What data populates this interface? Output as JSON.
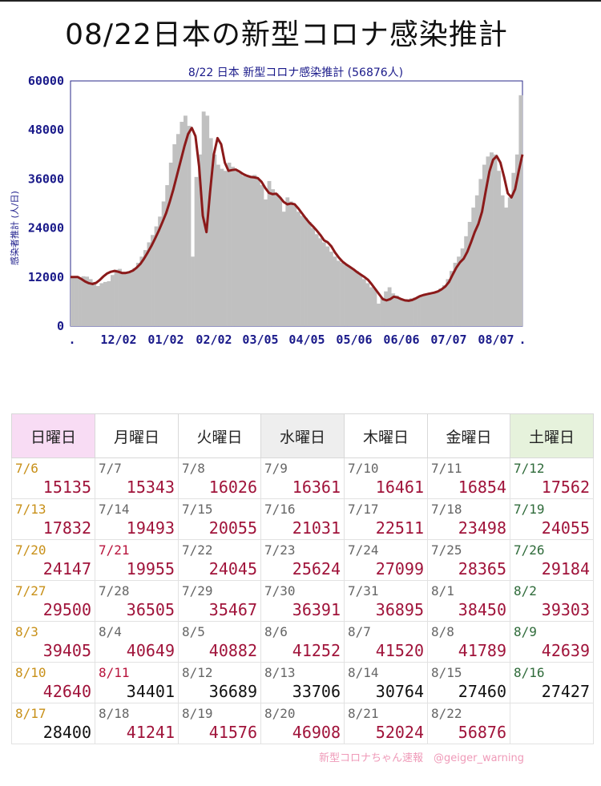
{
  "page_title": "08/22日本の新型コロナ感染推計",
  "chart_data": {
    "type": "bar",
    "title": "8/22 日本 新型コロナ感染推計 (56876人)",
    "ylabel": "感染者推計 (人/日)",
    "xlabel": "",
    "ylim": [
      0,
      60000
    ],
    "yticks": [
      "0",
      "12000",
      "24000",
      "36000",
      "48000",
      "60000"
    ],
    "xticks": [
      ".",
      "12/02",
      "01/02",
      "02/02",
      "03/05",
      "04/05",
      "05/06",
      "06/06",
      "07/07",
      "08/07",
      "."
    ],
    "bar_color": "#c0c0c0",
    "line_color": "#8b1a1a",
    "series": [
      {
        "kind": "daily_bars",
        "values": [
          12000,
          12300,
          11800,
          12200,
          12100,
          11500,
          10800,
          9800,
          10500,
          10800,
          11000,
          12500,
          13800,
          14000,
          13300,
          13000,
          13400,
          14200,
          15500,
          17000,
          18600,
          20500,
          22300,
          24400,
          26800,
          30500,
          34500,
          40000,
          44500,
          47000,
          50000,
          51500,
          49000,
          17000,
          36500,
          42000,
          52500,
          51500,
          46000,
          42000,
          39500,
          38500,
          38000,
          40000,
          39000,
          38000,
          37500,
          36800,
          36500,
          36800,
          37000,
          36000,
          34500,
          31000,
          35500,
          33500,
          32500,
          31500,
          28000,
          31500,
          30500,
          29500,
          28000,
          27000,
          26500,
          25500,
          24000,
          22500,
          21500,
          20500,
          19500,
          18200,
          17000,
          16000,
          15500,
          15000,
          14500,
          14000,
          13500,
          12500,
          11500,
          10500,
          9500,
          9000,
          5500,
          7000,
          8500,
          9500,
          8000,
          7500,
          6800,
          6500,
          6600,
          6800,
          7000,
          7300,
          7600,
          7800,
          8200,
          8300,
          8500,
          9200,
          10000,
          11500,
          13500,
          15500,
          17000,
          19000,
          22000,
          25500,
          29000,
          32000,
          36000,
          39500,
          41500,
          42500,
          42000,
          38000,
          32000,
          29000,
          31500,
          37500,
          42000,
          56500
        ]
      },
      {
        "kind": "smoothed_line",
        "values": [
          12000,
          12000,
          12000,
          11500,
          10900,
          10500,
          10300,
          10600,
          11300,
          12200,
          12900,
          13300,
          13500,
          13300,
          13000,
          13000,
          13200,
          13600,
          14300,
          15200,
          16500,
          18000,
          19600,
          21400,
          23300,
          25400,
          27600,
          30400,
          33500,
          37000,
          40500,
          44000,
          47000,
          48500,
          46500,
          39000,
          27000,
          23000,
          33000,
          42000,
          46000,
          44500,
          40000,
          38000,
          38200,
          38300,
          37800,
          37200,
          36800,
          36500,
          36400,
          36200,
          35300,
          33800,
          32600,
          32300,
          32400,
          31500,
          30400,
          29800,
          30000,
          29800,
          28800,
          27600,
          26400,
          25300,
          24400,
          23400,
          22300,
          21000,
          20500,
          19500,
          18000,
          16800,
          15800,
          15100,
          14500,
          13900,
          13200,
          12600,
          12000,
          11300,
          10200,
          9000,
          7800,
          6600,
          6300,
          6600,
          7200,
          7000,
          6600,
          6300,
          6200,
          6400,
          6800,
          7300,
          7600,
          7800,
          8000,
          8200,
          8500,
          9000,
          9700,
          10800,
          12600,
          14300,
          15600,
          16500,
          18200,
          20500,
          23000,
          25000,
          28000,
          33000,
          37800,
          40700,
          41600,
          40000,
          36500,
          32500,
          31500,
          33500,
          38000,
          42000
        ]
      }
    ]
  },
  "calendar": {
    "headers": [
      "日曜日",
      "月曜日",
      "火曜日",
      "水曜日",
      "木曜日",
      "金曜日",
      "土曜日"
    ],
    "rows": [
      [
        {
          "date": "7/6",
          "value": "15135"
        },
        {
          "date": "7/7",
          "value": "15343"
        },
        {
          "date": "7/8",
          "value": "16026"
        },
        {
          "date": "7/9",
          "value": "16361"
        },
        {
          "date": "7/10",
          "value": "16461"
        },
        {
          "date": "7/11",
          "value": "16854"
        },
        {
          "date": "7/12",
          "value": "17562"
        }
      ],
      [
        {
          "date": "7/13",
          "value": "17832"
        },
        {
          "date": "7/14",
          "value": "19493"
        },
        {
          "date": "7/15",
          "value": "20055"
        },
        {
          "date": "7/16",
          "value": "21031"
        },
        {
          "date": "7/17",
          "value": "22511"
        },
        {
          "date": "7/18",
          "value": "23498"
        },
        {
          "date": "7/19",
          "value": "24055"
        }
      ],
      [
        {
          "date": "7/20",
          "value": "24147"
        },
        {
          "date": "7/21",
          "value": "19955"
        },
        {
          "date": "7/22",
          "value": "24045"
        },
        {
          "date": "7/23",
          "value": "25624"
        },
        {
          "date": "7/24",
          "value": "27099"
        },
        {
          "date": "7/25",
          "value": "28365"
        },
        {
          "date": "7/26",
          "value": "29184"
        }
      ],
      [
        {
          "date": "7/27",
          "value": "29500"
        },
        {
          "date": "7/28",
          "value": "36505"
        },
        {
          "date": "7/29",
          "value": "35467"
        },
        {
          "date": "7/30",
          "value": "36391"
        },
        {
          "date": "7/31",
          "value": "36895"
        },
        {
          "date": "8/1",
          "value": "38450"
        },
        {
          "date": "8/2",
          "value": "39303"
        }
      ],
      [
        {
          "date": "8/3",
          "value": "39405"
        },
        {
          "date": "8/4",
          "value": "40649"
        },
        {
          "date": "8/5",
          "value": "40882"
        },
        {
          "date": "8/6",
          "value": "41252"
        },
        {
          "date": "8/7",
          "value": "41520"
        },
        {
          "date": "8/8",
          "value": "41789"
        },
        {
          "date": "8/9",
          "value": "42639"
        }
      ],
      [
        {
          "date": "8/10",
          "value": "42640"
        },
        {
          "date": "8/11",
          "value": "34401"
        },
        {
          "date": "8/12",
          "value": "36689"
        },
        {
          "date": "8/13",
          "value": "33706"
        },
        {
          "date": "8/14",
          "value": "30764"
        },
        {
          "date": "8/15",
          "value": "27460"
        },
        {
          "date": "8/16",
          "value": "27427"
        }
      ],
      [
        {
          "date": "8/17",
          "value": "28400"
        },
        {
          "date": "8/18",
          "value": "41241"
        },
        {
          "date": "8/19",
          "value": "41576"
        },
        {
          "date": "8/20",
          "value": "46908"
        },
        {
          "date": "8/21",
          "value": "52024"
        },
        {
          "date": "8/22",
          "value": "56876"
        },
        {
          "date": "",
          "value": ""
        }
      ]
    ]
  },
  "credit": "新型コロナちゃん速報　@geiger_warning"
}
